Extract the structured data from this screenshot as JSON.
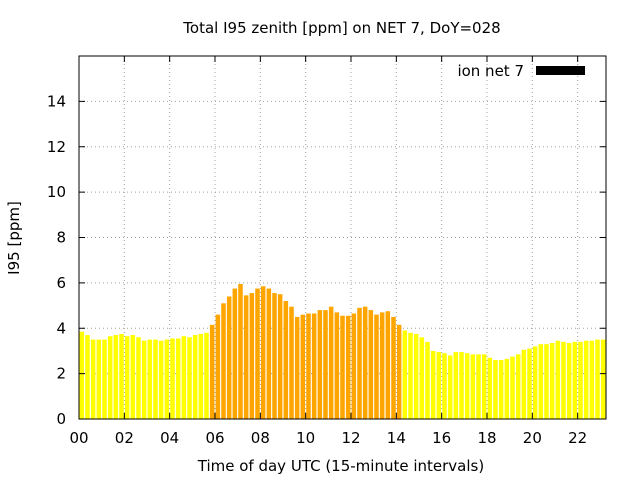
{
  "chart_data": {
    "type": "bar",
    "title": "Total I95 zenith [ppm] on NET 7, DoY=028",
    "xlabel": "Time of day UTC (15-minute intervals)",
    "ylabel": "I95 [ppm]",
    "xlim": [
      0,
      23.25
    ],
    "ylim": [
      0,
      16
    ],
    "x_ticks": [
      0,
      2,
      4,
      6,
      8,
      10,
      12,
      14,
      16,
      18,
      20,
      22
    ],
    "x_tick_labels": [
      "00",
      "02",
      "04",
      "06",
      "08",
      "10",
      "12",
      "14",
      "16",
      "18",
      "20",
      "22"
    ],
    "y_ticks": [
      0,
      2,
      4,
      6,
      8,
      10,
      12,
      14
    ],
    "y_tick_labels": [
      "0",
      "2",
      "4",
      "6",
      "8",
      "10",
      "12",
      "14"
    ],
    "grid": true,
    "legend": {
      "label": "ion net 7",
      "position": "top-right",
      "swatch_color": "#000000"
    },
    "interval_hours": 0.25,
    "bar_width_hours": 0.2,
    "threshold": 4.0,
    "colors": {
      "low": "#ffff00",
      "high": "#ffa500",
      "frame": "#000000",
      "grid": "#a0a0a0"
    },
    "series": [
      {
        "name": "ion net 7",
        "x_start": 0,
        "values": [
          3.85,
          3.7,
          3.5,
          3.5,
          3.5,
          3.65,
          3.7,
          3.75,
          3.65,
          3.7,
          3.6,
          3.45,
          3.5,
          3.5,
          3.45,
          3.5,
          3.55,
          3.55,
          3.65,
          3.6,
          3.7,
          3.75,
          3.8,
          4.15,
          4.6,
          5.1,
          5.4,
          5.75,
          5.95,
          5.45,
          5.55,
          5.75,
          5.85,
          5.75,
          5.55,
          5.5,
          5.2,
          4.95,
          4.5,
          4.6,
          4.65,
          4.65,
          4.8,
          4.8,
          4.95,
          4.7,
          4.55,
          4.55,
          4.65,
          4.9,
          4.95,
          4.8,
          4.6,
          4.7,
          4.75,
          4.5,
          4.15,
          3.9,
          3.8,
          3.75,
          3.6,
          3.4,
          3.0,
          2.95,
          2.9,
          2.8,
          2.95,
          2.95,
          2.9,
          2.85,
          2.85,
          2.85,
          2.7,
          2.6,
          2.6,
          2.65,
          2.75,
          2.85,
          3.05,
          3.1,
          3.2,
          3.3,
          3.3,
          3.35,
          3.45,
          3.4,
          3.35,
          3.4,
          3.4,
          3.45,
          3.45,
          3.5,
          3.5
        ]
      }
    ]
  }
}
